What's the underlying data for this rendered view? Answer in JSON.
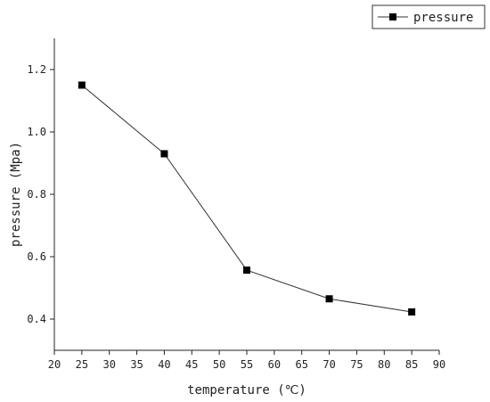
{
  "chart_data": {
    "type": "line",
    "title": "",
    "xlabel": "temperature (℃)",
    "ylabel": "pressure (Mpa)",
    "xlim": [
      20,
      90
    ],
    "ylim": [
      0.3,
      1.3
    ],
    "x_ticks": [
      20,
      25,
      30,
      35,
      40,
      45,
      50,
      55,
      60,
      65,
      70,
      75,
      80,
      85,
      90
    ],
    "y_ticks": [
      0.4,
      0.6,
      0.8,
      1.0,
      1.2
    ],
    "y_tick_labels": [
      "0.4",
      "0.6",
      "0.8",
      "1.0",
      "1.2"
    ],
    "grid": false,
    "legend_position": "top-right",
    "series": [
      {
        "name": "pressure",
        "marker": "square",
        "x": [
          25,
          40,
          55,
          70,
          85
        ],
        "y": [
          1.15,
          0.93,
          0.557,
          0.465,
          0.423
        ]
      }
    ]
  }
}
